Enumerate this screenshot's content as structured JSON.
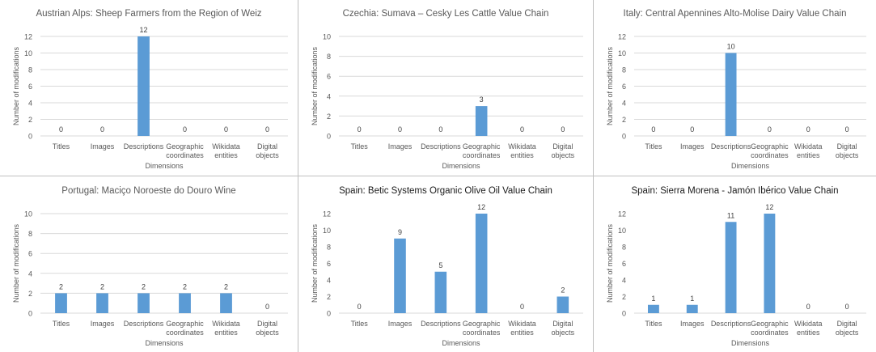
{
  "chart_data": [
    {
      "type": "bar",
      "title": "Austrian Alps: Sheep Farmers from the Region of Weiz",
      "xlabel": "Dimensions",
      "ylabel": "Number of modifications",
      "categories": [
        [
          "Titles"
        ],
        [
          "Images"
        ],
        [
          "Descriptions"
        ],
        [
          "Geographic",
          "coordinates"
        ],
        [
          "Wikidata",
          "entities"
        ],
        [
          "Digital",
          "objects"
        ]
      ],
      "values": [
        0,
        0,
        12,
        0,
        0,
        0
      ],
      "ylim": [
        0,
        12
      ],
      "yticks": [
        0,
        2,
        4,
        6,
        8,
        10,
        12
      ],
      "grid": true,
      "title_dark": false
    },
    {
      "type": "bar",
      "title": "Czechia: Sumava – Cesky Les Cattle Value Chain",
      "xlabel": "Dimensions",
      "ylabel": "Number of modifications",
      "categories": [
        [
          "Titles"
        ],
        [
          "Images"
        ],
        [
          "Descriptions"
        ],
        [
          "Geographic",
          "coordinates"
        ],
        [
          "Wikidata",
          "entities"
        ],
        [
          "Digital",
          "objects"
        ]
      ],
      "values": [
        0,
        0,
        0,
        3,
        0,
        0
      ],
      "ylim": [
        0,
        10
      ],
      "yticks": [
        0,
        2,
        4,
        6,
        8,
        10
      ],
      "grid": true,
      "title_dark": false
    },
    {
      "type": "bar",
      "title": "Italy: Central Apennines Alto-Molise Dairy Value Chain",
      "xlabel": "Dimensions",
      "ylabel": "Number of modifications",
      "categories": [
        [
          "Titles"
        ],
        [
          "Images"
        ],
        [
          "Descriptions"
        ],
        [
          "Geographic",
          "coordinates"
        ],
        [
          "Wikidata",
          "entities"
        ],
        [
          "Digital",
          "objects"
        ]
      ],
      "values": [
        0,
        0,
        10,
        0,
        0,
        0
      ],
      "ylim": [
        0,
        12
      ],
      "yticks": [
        0,
        2,
        4,
        6,
        8,
        10,
        12
      ],
      "grid": true,
      "title_dark": false
    },
    {
      "type": "bar",
      "title": "Portugal: Maciço Noroeste do Douro Wine",
      "xlabel": "Dimensions",
      "ylabel": "Number of modifications",
      "categories": [
        [
          "Titles"
        ],
        [
          "Images"
        ],
        [
          "Descriptions"
        ],
        [
          "Geographic",
          "coordinates"
        ],
        [
          "Wikidata",
          "entities"
        ],
        [
          "Digital",
          "objects"
        ]
      ],
      "values": [
        2,
        2,
        2,
        2,
        2,
        0
      ],
      "ylim": [
        0,
        10
      ],
      "yticks": [
        0,
        2,
        4,
        6,
        8,
        10
      ],
      "grid": true,
      "title_dark": false
    },
    {
      "type": "bar",
      "title": "Spain: Betic Systems Organic Olive Oil Value Chain",
      "xlabel": "Dimensions",
      "ylabel": "Number of modifications",
      "categories": [
        [
          "Titles"
        ],
        [
          "Images"
        ],
        [
          "Descriptions"
        ],
        [
          "Geographic",
          "coordinates"
        ],
        [
          "Wikidata",
          "entities"
        ],
        [
          "Digital",
          "objects"
        ]
      ],
      "values": [
        0,
        9,
        5,
        12,
        0,
        2
      ],
      "ylim": [
        0,
        12
      ],
      "yticks": [
        0,
        2,
        4,
        6,
        8,
        10,
        12
      ],
      "grid": false,
      "title_dark": true
    },
    {
      "type": "bar",
      "title": "Spain: Sierra Morena - Jamón Ibérico Value Chain",
      "xlabel": "Dimensions",
      "ylabel": "Number of modifications",
      "categories": [
        [
          "Titles"
        ],
        [
          "Images"
        ],
        [
          "Descriptions"
        ],
        [
          "Geographic",
          "coordinates"
        ],
        [
          "Wikidata",
          "entities"
        ],
        [
          "Digital",
          "objects"
        ]
      ],
      "values": [
        1,
        1,
        11,
        12,
        0,
        0
      ],
      "ylim": [
        0,
        12
      ],
      "yticks": [
        0,
        2,
        4,
        6,
        8,
        10,
        12
      ],
      "grid": false,
      "title_dark": true
    }
  ],
  "colors": {
    "bar": "#5b9bd5",
    "grid": "#d9d9d9",
    "axis_text": "#595959",
    "title_light": "#595959",
    "title_dark": "#1a1a1a"
  }
}
